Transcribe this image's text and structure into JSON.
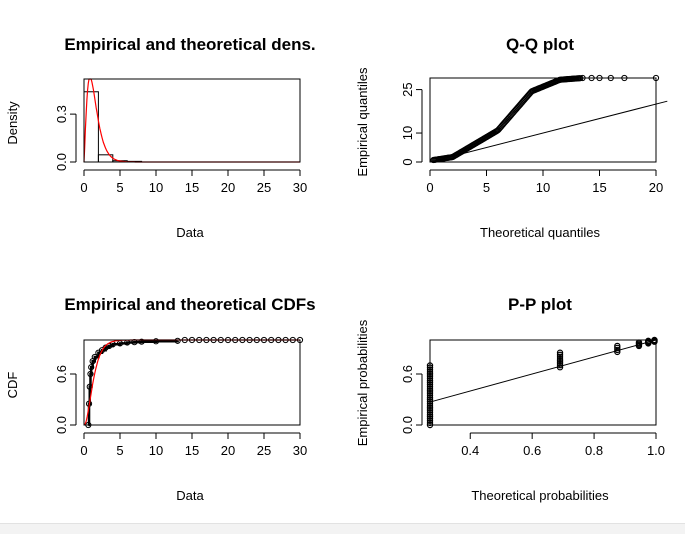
{
  "chart_data": [
    {
      "id": "density",
      "type": "histogram-density",
      "title": "Empirical and theoretical dens.",
      "xlabel": "Data",
      "ylabel": "Density",
      "xlim": [
        0,
        30
      ],
      "ylim": [
        0,
        0.52
      ],
      "xticks": [
        0,
        5,
        10,
        15,
        20,
        25,
        30
      ],
      "yticks": [
        0.0,
        0.3
      ],
      "ytick_labels": [
        "0.0",
        "0.3"
      ],
      "bins": [
        {
          "x0": 0,
          "x1": 2,
          "density": 0.44
        },
        {
          "x0": 2,
          "x1": 4,
          "density": 0.045
        },
        {
          "x0": 4,
          "x1": 6,
          "density": 0.008
        },
        {
          "x0": 6,
          "x1": 8,
          "density": 0.004
        }
      ],
      "curve": {
        "color": "#ff0000",
        "shape": 2.4,
        "scale": 0.6
      },
      "grid": false
    },
    {
      "id": "qq",
      "type": "scatter",
      "title": "Q-Q plot",
      "xlabel": "Theoretical quantiles",
      "ylabel": "Empirical quantiles",
      "xlim": [
        0,
        20
      ],
      "ylim": [
        0,
        29
      ],
      "xticks": [
        0,
        5,
        10,
        15,
        20
      ],
      "yticks": [
        0,
        10,
        25
      ],
      "reference_line": {
        "from": [
          0,
          0
        ],
        "to": [
          21,
          21
        ]
      },
      "outliers": [
        [
          13.5,
          29
        ],
        [
          14.3,
          29
        ],
        [
          15,
          29
        ],
        [
          16,
          29
        ],
        [
          17.2,
          29
        ],
        [
          20,
          29
        ]
      ],
      "grid": false
    },
    {
      "id": "cdf",
      "type": "step-cdf",
      "title": "Empirical and theoretical CDFs",
      "xlabel": "Data",
      "ylabel": "CDF",
      "xlim": [
        0,
        30
      ],
      "ylim": [
        0,
        1
      ],
      "xticks": [
        0,
        5,
        10,
        15,
        20,
        25,
        30
      ],
      "yticks": [
        0.0,
        0.6
      ],
      "ytick_labels": [
        "0.0",
        "0.6"
      ],
      "curve": {
        "color": "#ff0000"
      },
      "grid": false
    },
    {
      "id": "pp",
      "type": "scatter",
      "title": "P-P plot",
      "xlabel": "Theoretical probabilities",
      "ylabel": "Empirical probabilities",
      "xlim": [
        0.27,
        1.0
      ],
      "ylim": [
        0,
        1
      ],
      "xticks": [
        0.4,
        0.6,
        0.8,
        1.0
      ],
      "xtick_labels": [
        "0.4",
        "0.6",
        "0.8",
        "1.0"
      ],
      "yticks": [
        0.0,
        0.6
      ],
      "ytick_labels": [
        "0.0",
        "0.6"
      ],
      "clusters": [
        {
          "x": 0.27,
          "y_from": 0.0,
          "y_to": 0.7
        },
        {
          "x": 0.69,
          "y_from": 0.68,
          "y_to": 0.85
        },
        {
          "x": 0.875,
          "y_from": 0.86,
          "y_to": 0.93
        },
        {
          "x": 0.945,
          "y_from": 0.93,
          "y_to": 0.97
        },
        {
          "x": 0.975,
          "y_from": 0.96,
          "y_to": 0.99
        },
        {
          "x": 0.995,
          "y_from": 0.98,
          "y_to": 1.0
        }
      ],
      "reference_line": {
        "from": [
          0.27,
          0.27
        ],
        "to": [
          1.0,
          1.0
        ]
      },
      "grid": false
    }
  ]
}
